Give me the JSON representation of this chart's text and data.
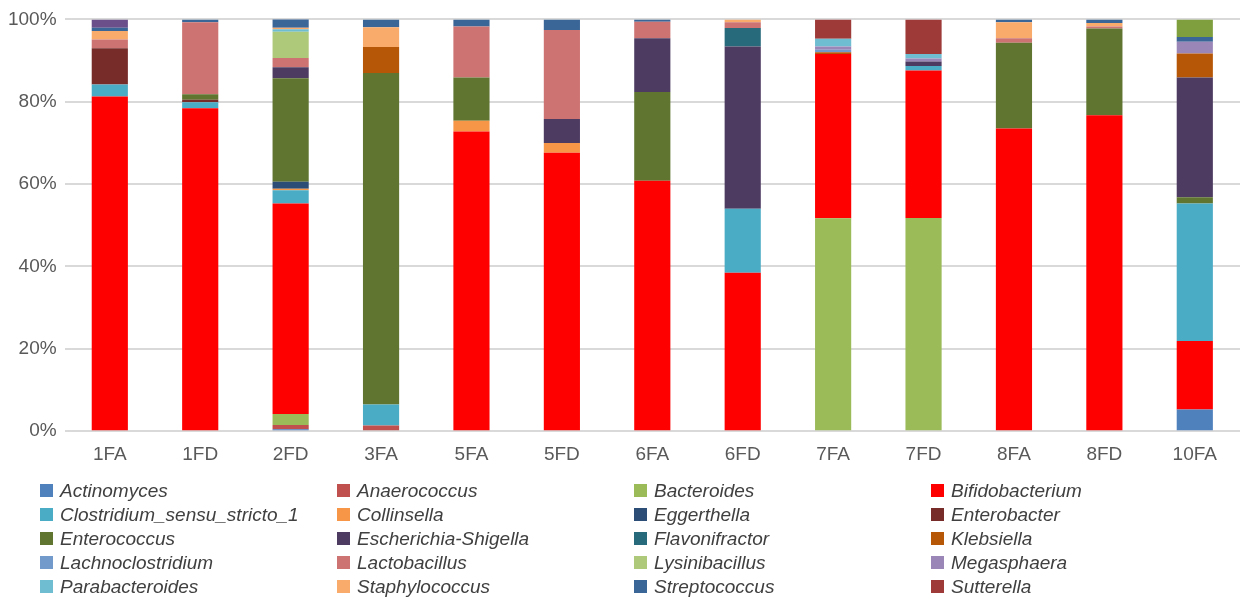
{
  "chart_data": {
    "type": "bar",
    "stacked": true,
    "categories": [
      "1FA",
      "1FD",
      "2FD",
      "3FA",
      "5FA",
      "5FD",
      "6FA",
      "6FD",
      "7FA",
      "7FD",
      "8FA",
      "8FD",
      "10FA"
    ],
    "ylim": [
      0,
      100
    ],
    "yticks": [
      {
        "value": 0,
        "label": "0%"
      },
      {
        "value": 20,
        "label": "20%"
      },
      {
        "value": 40,
        "label": "40%"
      },
      {
        "value": 60,
        "label": "60%"
      },
      {
        "value": 80,
        "label": "80%"
      },
      {
        "value": 100,
        "label": "100%"
      }
    ],
    "grid": "y",
    "legend": "bottom",
    "series": [
      {
        "name": "Actinomyces",
        "color": "#4f81bd",
        "values": [
          null,
          null,
          0.5,
          null,
          null,
          null,
          null,
          null,
          null,
          null,
          null,
          null,
          5.3
        ]
      },
      {
        "name": "Anaerococcus",
        "color": "#c0504d",
        "values": [
          null,
          null,
          1.0,
          1.4,
          null,
          null,
          null,
          null,
          null,
          null,
          null,
          null,
          null
        ]
      },
      {
        "name": "Bacteroides",
        "color": "#9bbb59",
        "values": [
          null,
          null,
          2.7,
          null,
          null,
          null,
          null,
          null,
          51.7,
          51.8,
          null,
          null,
          null
        ]
      },
      {
        "name": "Bifidobacterium",
        "color": "#ff0000",
        "values": [
          81.3,
          78.4,
          51.1,
          null,
          72.8,
          67.6,
          60.8,
          38.5,
          39.9,
          35.8,
          73.5,
          76.7,
          16.6
        ]
      },
      {
        "name": "Clostridium_sensu_stricto_1",
        "color": "#4bacc6",
        "values": [
          2.9,
          1.5,
          3.2,
          5.1,
          null,
          null,
          null,
          15.5,
          null,
          1.1,
          null,
          null,
          33.4
        ]
      },
      {
        "name": "Collinsella",
        "color": "#f79646",
        "values": [
          null,
          null,
          0.4,
          null,
          2.6,
          2.4,
          null,
          null,
          null,
          null,
          null,
          null,
          null
        ]
      },
      {
        "name": "Eggerthella",
        "color": "#2c4d75",
        "values": [
          null,
          null,
          1.7,
          null,
          null,
          null,
          null,
          null,
          null,
          null,
          null,
          null,
          null
        ]
      },
      {
        "name": "Enterobacter",
        "color": "#772c2a",
        "values": [
          8.8,
          0.6,
          null,
          null,
          null,
          null,
          null,
          null,
          null,
          null,
          null,
          null,
          null
        ]
      },
      {
        "name": "Enterococcus",
        "color": "#5f7530",
        "values": [
          null,
          1.3,
          25.1,
          80.5,
          10.5,
          null,
          21.6,
          null,
          null,
          null,
          20.8,
          21.1,
          1.5
        ]
      },
      {
        "name": "Escherichia-Shigella",
        "color": "#4d3b62",
        "values": [
          null,
          null,
          2.7,
          null,
          null,
          5.8,
          13.0,
          39.4,
          null,
          1.1,
          null,
          null,
          29.1
        ]
      },
      {
        "name": "Flavonifractor",
        "color": "#276a7c",
        "values": [
          null,
          null,
          null,
          null,
          null,
          null,
          null,
          4.5,
          null,
          null,
          null,
          null,
          null
        ]
      },
      {
        "name": "Klebsiella",
        "color": "#b65708",
        "values": [
          null,
          null,
          null,
          6.3,
          null,
          null,
          null,
          null,
          0.4,
          null,
          null,
          null,
          5.8
        ]
      },
      {
        "name": "Lachnoclostridium",
        "color": "#729aca",
        "values": [
          null,
          null,
          null,
          null,
          null,
          null,
          null,
          null,
          0.6,
          null,
          null,
          null,
          null
        ]
      },
      {
        "name": "Lactobacillus",
        "color": "#cd7371",
        "values": [
          2.1,
          17.5,
          2.2,
          null,
          12.4,
          21.6,
          4.0,
          1.4,
          null,
          null,
          1.1,
          0.5,
          null
        ]
      },
      {
        "name": "Lysinibacillus",
        "color": "#afc97a",
        "values": [
          null,
          null,
          6.4,
          null,
          null,
          null,
          null,
          null,
          null,
          null,
          null,
          null,
          null
        ]
      },
      {
        "name": "Megasphaera",
        "color": "#9b86b8",
        "values": [
          null,
          null,
          null,
          null,
          null,
          null,
          null,
          null,
          0.8,
          0.7,
          null,
          null,
          2.9
        ]
      },
      {
        "name": "Parabacteroides",
        "color": "#6fbdd1",
        "values": [
          null,
          null,
          0.6,
          null,
          null,
          null,
          null,
          null,
          1.9,
          1.1,
          null,
          null,
          null
        ]
      },
      {
        "name": "Staphylococcus",
        "color": "#f9ab6b",
        "values": [
          2.1,
          null,
          0.4,
          4.8,
          null,
          null,
          null,
          0.7,
          null,
          null,
          3.9,
          0.8,
          null
        ]
      },
      {
        "name": "Streptococcus",
        "color": "#3a6597",
        "values": [
          0.8,
          0.7,
          2.1,
          1.9,
          1.7,
          2.6,
          0.6,
          null,
          null,
          null,
          0.7,
          0.9,
          1.1
        ]
      },
      {
        "name": "Sutterella",
        "color": "#9e3a38",
        "values": [
          null,
          null,
          null,
          null,
          null,
          null,
          null,
          null,
          4.7,
          8.4,
          null,
          null,
          null
        ]
      },
      {
        "color": "#6b4f8a",
        "values": [
          2.0,
          null,
          null,
          null,
          null,
          null,
          null,
          null,
          null,
          null,
          null,
          null,
          null
        ]
      },
      {
        "color": "#7f9f3f",
        "values": [
          null,
          null,
          null,
          null,
          null,
          null,
          null,
          null,
          null,
          null,
          null,
          null,
          4.3
        ]
      }
    ]
  }
}
